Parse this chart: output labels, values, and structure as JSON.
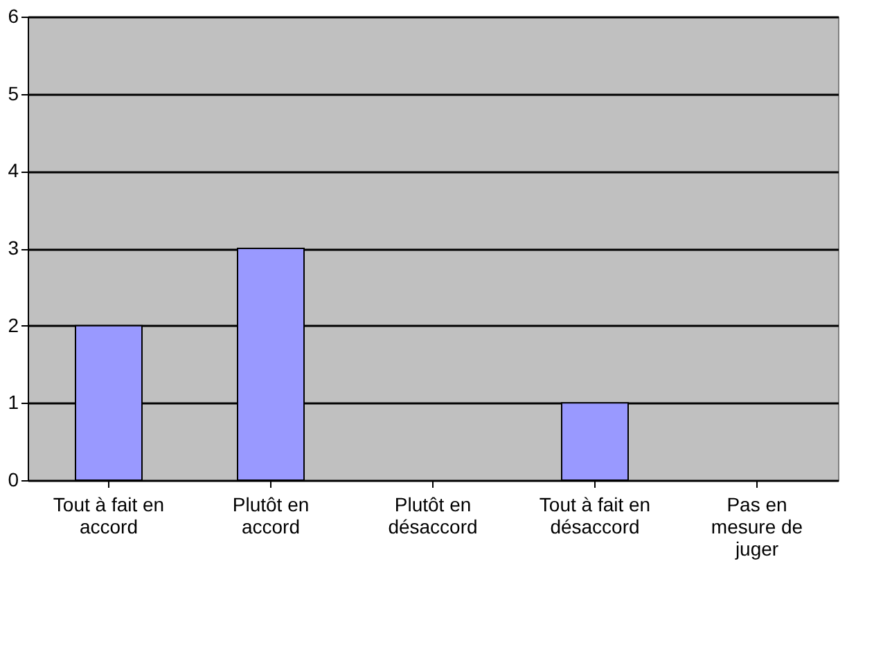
{
  "chart_data": {
    "type": "bar",
    "categories": [
      "Tout à fait en\naccord",
      "Plutôt en\naccord",
      "Plutôt en\ndésaccord",
      "Tout à fait en\ndésaccord",
      "Pas en\nmesure de\njuger"
    ],
    "values": [
      2,
      3,
      0,
      1,
      0
    ],
    "color": "#9999ff",
    "ylim": [
      0,
      6
    ],
    "yticks": [
      0,
      1,
      2,
      3,
      4,
      5,
      6
    ],
    "grid": "y"
  }
}
